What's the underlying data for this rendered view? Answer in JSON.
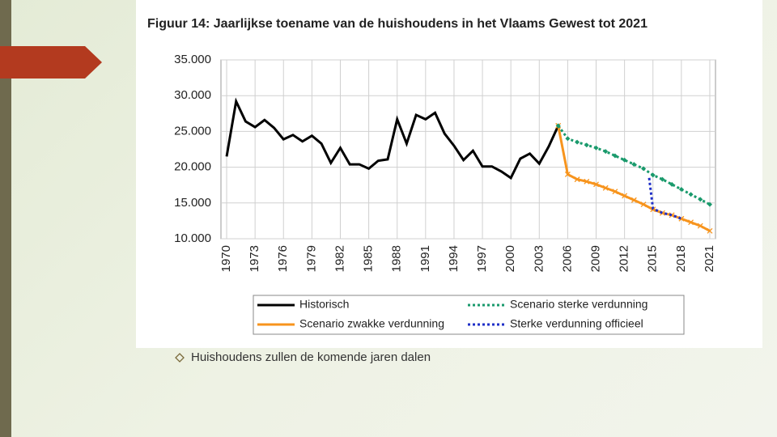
{
  "chart_data": {
    "type": "line",
    "title": "Figuur 14: Jaarlijkse toename van de huishoudens in het Vlaams Gewest tot 2021",
    "xlim": [
      1969.4,
      2021.6
    ],
    "xticks": [
      1970,
      1973,
      1976,
      1979,
      1982,
      1985,
      1988,
      1991,
      1994,
      1997,
      2000,
      2003,
      2006,
      2009,
      2012,
      2015,
      2018,
      2021
    ],
    "ylim": [
      10000,
      35000
    ],
    "yticks": [
      {
        "value": 10000,
        "label": "10.000"
      },
      {
        "value": 15000,
        "label": "15.000"
      },
      {
        "value": 20000,
        "label": "20.000"
      },
      {
        "value": 25000,
        "label": "25.000"
      },
      {
        "value": 30000,
        "label": "30.000"
      },
      {
        "value": 35000,
        "label": "35.000"
      }
    ],
    "grid": true,
    "legend": "bottom",
    "series": [
      {
        "name": "Historisch",
        "color": "#000000",
        "style": "solid",
        "marker": "none",
        "x": [
          1970,
          1971,
          1972,
          1973,
          1974,
          1975,
          1976,
          1977,
          1978,
          1979,
          1980,
          1981,
          1982,
          1983,
          1984,
          1985,
          1986,
          1987,
          1988,
          1989,
          1990,
          1991,
          1992,
          1993,
          1994,
          1995,
          1996,
          1997,
          1998,
          1999,
          2000,
          2001,
          2002,
          2003,
          2004,
          2005
        ],
        "values": [
          21500,
          29200,
          26400,
          25600,
          26600,
          25500,
          23900,
          24500,
          23600,
          24400,
          23300,
          20600,
          22700,
          20400,
          20400,
          19800,
          20900,
          21100,
          26700,
          23300,
          27300,
          26700,
          27600,
          24700,
          23000,
          21000,
          22300,
          20100,
          20100,
          19400,
          18500,
          21200,
          21900,
          20500,
          22900,
          25800
        ]
      },
      {
        "name": "Scenario zwakke verdunning",
        "color": "#f7941d",
        "style": "solid",
        "marker": "x",
        "x": [
          2005,
          2006,
          2007,
          2008,
          2009,
          2010,
          2011,
          2012,
          2013,
          2014,
          2015,
          2016,
          2017,
          2018,
          2019,
          2020,
          2021
        ],
        "values": [
          25800,
          19000,
          18300,
          18000,
          17600,
          17100,
          16600,
          16000,
          15400,
          14800,
          14100,
          13600,
          13300,
          12800,
          12300,
          11800,
          11100
        ]
      },
      {
        "name": "Scenario sterke verdunning",
        "color": "#1a9a6c",
        "style": "dotted",
        "marker": "diamond",
        "x": [
          2005,
          2006,
          2007,
          2008,
          2009,
          2010,
          2011,
          2012,
          2013,
          2014,
          2015,
          2016,
          2017,
          2018,
          2019,
          2020,
          2021
        ],
        "values": [
          25800,
          24000,
          23500,
          23100,
          22700,
          22200,
          21600,
          21000,
          20400,
          19800,
          18900,
          18300,
          17600,
          16900,
          16200,
          15500,
          14800
        ]
      },
      {
        "name": "Sterke verdunning officieel",
        "color": "#1f2fc8",
        "style": "dotted",
        "marker": "none",
        "x": [
          2014.6,
          2015,
          2016,
          2017,
          2018
        ],
        "values": [
          18500,
          14200,
          13600,
          13300,
          12800
        ]
      }
    ]
  },
  "bullet": "Huishoudens zullen de komende jaren dalen"
}
